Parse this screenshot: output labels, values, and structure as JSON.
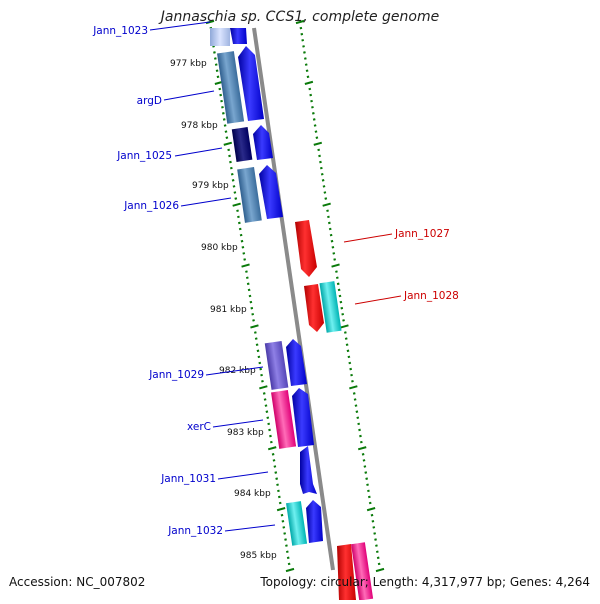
{
  "title": "Jannaschia sp. CCS1, complete genome",
  "footer": {
    "accession": "Accession: NC_007802",
    "summary": "Topology: circular; Length: 4,317,977 bp; Genes: 4,264"
  },
  "kbp_labels": [
    "977 kbp",
    "978 kbp",
    "979 kbp",
    "980 kbp",
    "981 kbp",
    "982 kbp",
    "983 kbp",
    "984 kbp",
    "985 kbp"
  ],
  "genes_forward": [
    {
      "name": "Jann_1023",
      "color": "#0000cc"
    },
    {
      "name": "argD",
      "color": "#0000cc"
    },
    {
      "name": "Jann_1025",
      "color": "#0000cc"
    },
    {
      "name": "Jann_1026",
      "color": "#0000cc"
    },
    {
      "name": "Jann_1029",
      "color": "#0000cc"
    },
    {
      "name": "xerC",
      "color": "#0000cc"
    },
    {
      "name": "Jann_1031",
      "color": "#0000cc"
    },
    {
      "name": "Jann_1032",
      "color": "#0000cc"
    }
  ],
  "genes_reverse": [
    {
      "name": "Jann_1027",
      "color": "#cc0000"
    },
    {
      "name": "Jann_1028",
      "color": "#cc0000"
    }
  ],
  "colors": {
    "forward_cds": "#0000ee",
    "reverse_cds": "#ee0000",
    "backbone": "#8a8a8a",
    "tick": "#0a7a0a"
  }
}
